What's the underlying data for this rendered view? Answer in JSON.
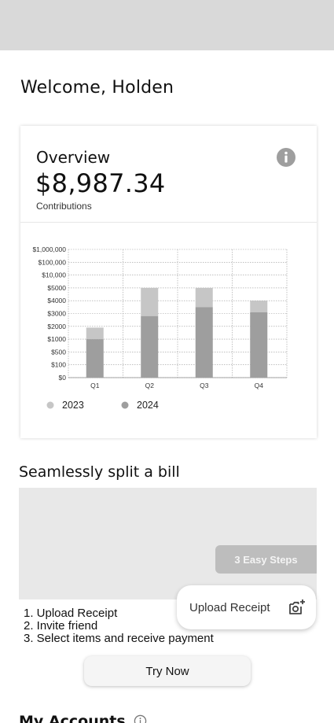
{
  "welcome": "Welcome, Holden",
  "overview": {
    "title": "Overview",
    "amount": "$8,987.34",
    "subtitle": "Contributions",
    "info_icon": "info-icon"
  },
  "chart_data": {
    "type": "bar",
    "stacked": true,
    "categories": [
      "Q1",
      "Q2",
      "Q3",
      "Q4"
    ],
    "y_ticks": [
      "$0",
      "$100",
      "$500",
      "$1000",
      "$2000",
      "$3000",
      "$4000",
      "$5000",
      "$10,000",
      "$100,000",
      "$1,000,000"
    ],
    "series": [
      {
        "name": "2024",
        "color": "#9e9e9e",
        "values": [
          1000,
          2800,
          3500,
          3100
        ]
      },
      {
        "name": "2023",
        "color": "#c6c6c6",
        "values": [
          1900,
          5000,
          5000,
          4000
        ]
      }
    ],
    "legend": [
      "2023",
      "2024"
    ],
    "legend_position": "bottom-left",
    "grid": true
  },
  "split": {
    "title": "Seamlessly split a bill",
    "badge": "3 Easy Steps",
    "upload_label": "Upload Receipt",
    "steps": [
      "1. Upload Receipt",
      "2. Invite friend",
      "3. Select items and receive payment"
    ],
    "try_button": "Try Now"
  },
  "accounts": {
    "title": "My Accounts"
  }
}
